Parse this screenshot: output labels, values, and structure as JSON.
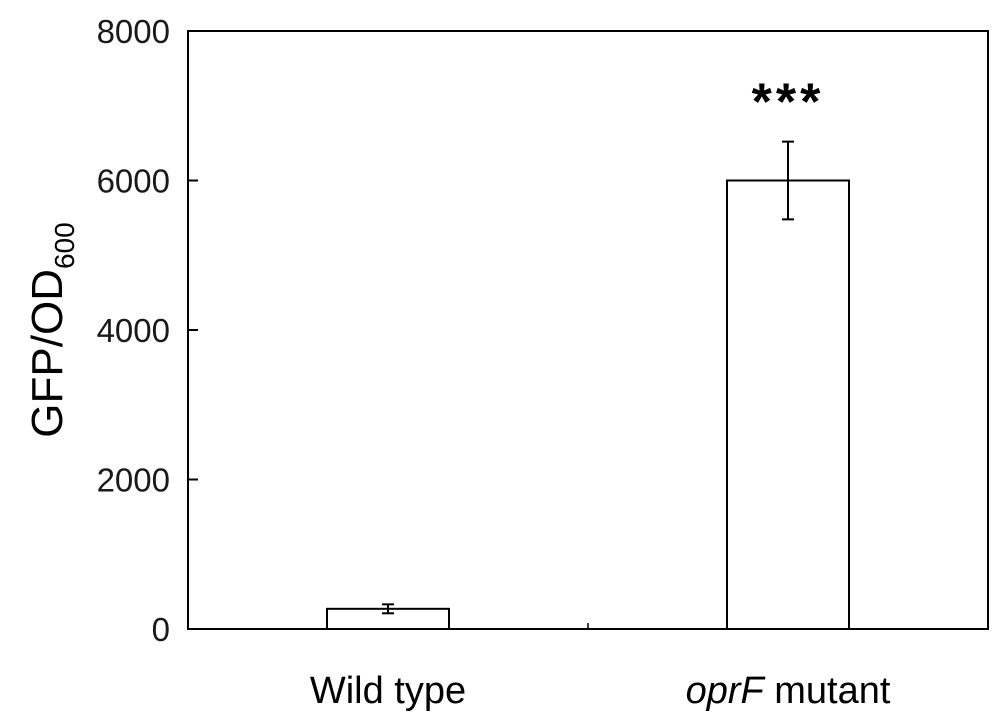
{
  "chart_data": {
    "type": "bar",
    "categories": [
      "Wild type",
      "oprF mutant"
    ],
    "category_italic_part": [
      "",
      "oprF"
    ],
    "category_rest_part": [
      "Wild type",
      " mutant"
    ],
    "values": [
      270,
      6000
    ],
    "errors": [
      60,
      520
    ],
    "significance": [
      "",
      "***"
    ],
    "ylabel_main": "GFP/OD",
    "ylabel_subscript": "600",
    "ylim": [
      0,
      8000
    ],
    "yticks": [
      0,
      2000,
      4000,
      6000,
      8000
    ],
    "grid": false,
    "bar_fill": "#ffffff",
    "bar_stroke": "#000000"
  }
}
